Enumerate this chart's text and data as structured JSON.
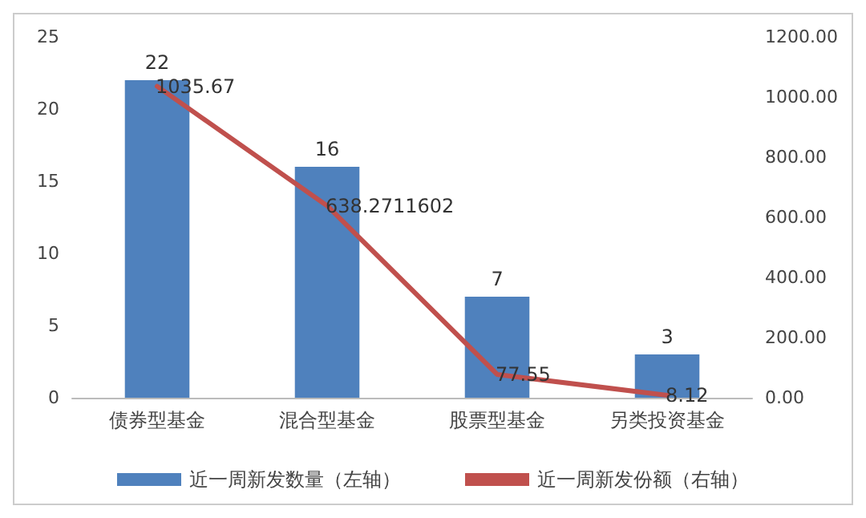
{
  "chart_data": {
    "type": "bar",
    "categories": [
      "债券型基金",
      "混合型基金",
      "股票型基金",
      "另类投资基金"
    ],
    "series": [
      {
        "name": "近一周新发数量（左轴）",
        "color": "#4f81bd",
        "values": [
          22,
          16,
          7,
          3
        ]
      },
      {
        "name": "近一周新发份额（右轴）",
        "type": "line",
        "axis": "y2",
        "color": "#c0504d",
        "values": [
          1035.67,
          638.2711602,
          77.55,
          8.12
        ]
      }
    ],
    "ylim": [
      0,
      25
    ],
    "yticks": [
      0,
      5,
      10,
      15,
      20,
      25
    ],
    "y2lim": [
      0,
      1200
    ],
    "y2ticks": [
      {
        "value": 0,
        "label": "0.00"
      },
      {
        "value": 200,
        "label": "200.00"
      },
      {
        "value": 400,
        "label": "400.00"
      },
      {
        "value": 600,
        "label": "600.00"
      },
      {
        "value": 800,
        "label": "800.00"
      },
      {
        "value": 1000,
        "label": "1000.00"
      },
      {
        "value": 1200,
        "label": "1200.00"
      }
    ],
    "data_labels": true,
    "legend": "bottom",
    "marker": "none"
  }
}
